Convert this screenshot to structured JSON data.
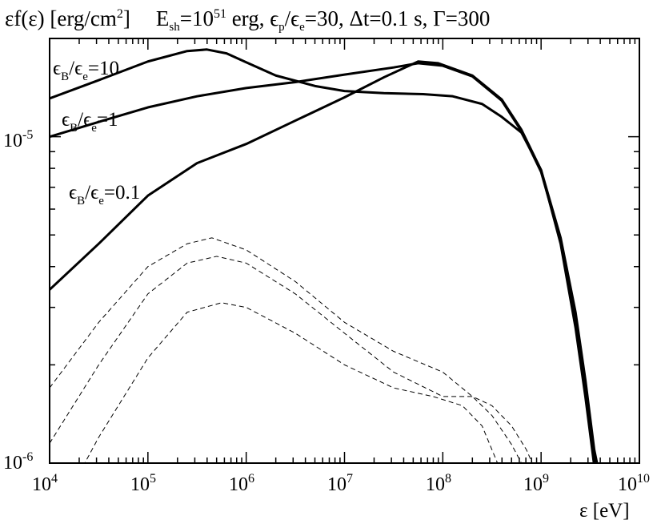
{
  "chart_data": {
    "type": "line",
    "title_parts": {
      "ylabel_pre": "εf(ε) [erg/cm",
      "ylabel_sup": "2",
      "ylabel_post": "]",
      "esh_pre": "E",
      "esh_sub": "sh",
      "esh_mid": "=10",
      "esh_sup": "51",
      "esh_post": " erg, ",
      "eps_p": "ϵ",
      "eps_p_sub": "p",
      "eps_slash": "/ϵ",
      "eps_e_sub": "e",
      "rest": "=30, Δt=0.1 s, Γ=300"
    },
    "xlabel": "ε [eV]",
    "xscale": "log",
    "yscale": "log",
    "xlim": [
      10000,
      10000000000
    ],
    "ylim": [
      1e-06,
      2e-05
    ],
    "x_ticks": [
      {
        "base": "10",
        "exp": "4"
      },
      {
        "base": "10",
        "exp": "5"
      },
      {
        "base": "10",
        "exp": "6"
      },
      {
        "base": "10",
        "exp": "7"
      },
      {
        "base": "10",
        "exp": "8"
      },
      {
        "base": "10",
        "exp": "9"
      },
      {
        "base": "10",
        "exp": "10"
      }
    ],
    "y_ticks": [
      {
        "base": "10",
        "exp": "-6"
      },
      {
        "base": "10",
        "exp": "-5"
      }
    ],
    "annotations": [
      {
        "pre": "ϵ",
        "sub1": "B",
        "mid": "/ϵ",
        "sub2": "e",
        "post": "=10"
      },
      {
        "pre": "ϵ",
        "sub1": "B",
        "mid": "/ϵ",
        "sub2": "e",
        "post": "=1"
      },
      {
        "pre": "ϵ",
        "sub1": "B",
        "mid": "/ϵ",
        "sub2": "e",
        "post": "=0.1"
      }
    ],
    "series": [
      {
        "label": "ϵB/ϵe=10",
        "style": "solid",
        "points": [
          [
            10000,
            1.31e-05
          ],
          [
            31600,
            1.49e-05
          ],
          [
            100000,
            1.7e-05
          ],
          [
            251000,
            1.83e-05
          ],
          [
            398000,
            1.85e-05
          ],
          [
            631000,
            1.8e-05
          ],
          [
            1000000,
            1.69e-05
          ],
          [
            2000000,
            1.54e-05
          ],
          [
            5010000,
            1.43e-05
          ],
          [
            10000000,
            1.38e-05
          ],
          [
            25100000,
            1.36e-05
          ],
          [
            63100000,
            1.35e-05
          ],
          [
            126000000,
            1.33e-05
          ],
          [
            251000000,
            1.26e-05
          ],
          [
            398000000,
            1.15e-05
          ],
          [
            631000000,
            1.03e-05
          ],
          [
            1000000000,
            7.9e-06
          ],
          [
            1580000000,
            4.7e-06
          ],
          [
            2240000000,
            2.6e-06
          ],
          [
            2820000000,
            1.6e-06
          ],
          [
            3310000000,
            1.1e-06
          ],
          [
            3550000000,
            9.3e-07
          ]
        ]
      },
      {
        "label": "ϵB/ϵe=1",
        "style": "solid",
        "points": [
          [
            10000,
            1e-05
          ],
          [
            31600,
            1.11e-05
          ],
          [
            100000,
            1.23e-05
          ],
          [
            316000,
            1.33e-05
          ],
          [
            1000000,
            1.41e-05
          ],
          [
            3160000,
            1.47e-05
          ],
          [
            10000000,
            1.55e-05
          ],
          [
            31600000,
            1.63e-05
          ],
          [
            56200000,
            1.68e-05
          ],
          [
            100000000,
            1.65e-05
          ],
          [
            200000000,
            1.53e-05
          ],
          [
            398000000,
            1.29e-05
          ],
          [
            631000000,
            1.04e-05
          ],
          [
            1000000000,
            7.8e-06
          ],
          [
            1580000000,
            4.8e-06
          ],
          [
            2240000000,
            2.8e-06
          ],
          [
            2820000000,
            1.7e-06
          ],
          [
            3390000000,
            1.1e-06
          ],
          [
            3720000000,
            9.3e-07
          ]
        ]
      },
      {
        "label": "ϵB/ϵe=0.1",
        "style": "solid",
        "points": [
          [
            10000,
            3.4e-06
          ],
          [
            31600,
            4.7e-06
          ],
          [
            100000,
            6.6e-06
          ],
          [
            316000,
            8.3e-06
          ],
          [
            1000000,
            9.5e-06
          ],
          [
            3160000,
            1.12e-05
          ],
          [
            10000000,
            1.32e-05
          ],
          [
            25100000,
            1.52e-05
          ],
          [
            56200000,
            1.7e-05
          ],
          [
            89100000,
            1.68e-05
          ],
          [
            200000000,
            1.54e-05
          ],
          [
            398000000,
            1.3e-05
          ],
          [
            631000000,
            1.05e-05
          ],
          [
            1000000000,
            7.9e-06
          ],
          [
            1580000000,
            4.9e-06
          ],
          [
            2240000000,
            2.9e-06
          ],
          [
            2820000000,
            1.8e-06
          ],
          [
            3470000000,
            1.1e-06
          ],
          [
            3890000000,
            9.3e-07
          ]
        ]
      },
      {
        "label": "dashed-top",
        "style": "dashed",
        "points": [
          [
            10000,
            1.7e-06
          ],
          [
            31600,
            2.7e-06
          ],
          [
            100000,
            4e-06
          ],
          [
            251000,
            4.7e-06
          ],
          [
            447000,
            4.9e-06
          ],
          [
            1000000,
            4.5e-06
          ],
          [
            3160000,
            3.6e-06
          ],
          [
            10000000,
            2.7e-06
          ],
          [
            31600000,
            2.2e-06
          ],
          [
            100000000,
            1.9e-06
          ],
          [
            200000000,
            1.6e-06
          ],
          [
            316000000,
            1.4e-06
          ],
          [
            501000000,
            1.14e-06
          ],
          [
            631000000,
            1e-06
          ],
          [
            750000000,
            9.5e-07
          ]
        ]
      },
      {
        "label": "dashed-middle",
        "style": "dashed",
        "points": [
          [
            10000,
            1.15e-06
          ],
          [
            31600,
            2e-06
          ],
          [
            100000,
            3.3e-06
          ],
          [
            251000,
            4.1e-06
          ],
          [
            501000,
            4.3e-06
          ],
          [
            1000000,
            4.1e-06
          ],
          [
            3160000,
            3.3e-06
          ],
          [
            10000000,
            2.5e-06
          ],
          [
            31600000,
            1.9e-06
          ],
          [
            100000000,
            1.6e-06
          ],
          [
            200000000,
            1.6e-06
          ],
          [
            316000000,
            1.5e-06
          ],
          [
            501000000,
            1.3e-06
          ],
          [
            708000000,
            1.1e-06
          ],
          [
            891000000,
            9.4e-07
          ]
        ]
      },
      {
        "label": "dashed-bottom",
        "style": "dashed",
        "points": [
          [
            20000,
            9.3e-07
          ],
          [
            31600,
            1.2e-06
          ],
          [
            100000,
            2.1e-06
          ],
          [
            251000,
            2.9e-06
          ],
          [
            562000,
            3.1e-06
          ],
          [
            1000000,
            3e-06
          ],
          [
            3160000,
            2.5e-06
          ],
          [
            10000000,
            2e-06
          ],
          [
            31600000,
            1.7e-06
          ],
          [
            79400000,
            1.6e-06
          ],
          [
            158000000,
            1.5e-06
          ],
          [
            251000000,
            1.3e-06
          ],
          [
            316000000,
            1.1e-06
          ],
          [
            398000000,
            9.3e-07
          ]
        ]
      }
    ],
    "grid": false,
    "legend": "none"
  }
}
